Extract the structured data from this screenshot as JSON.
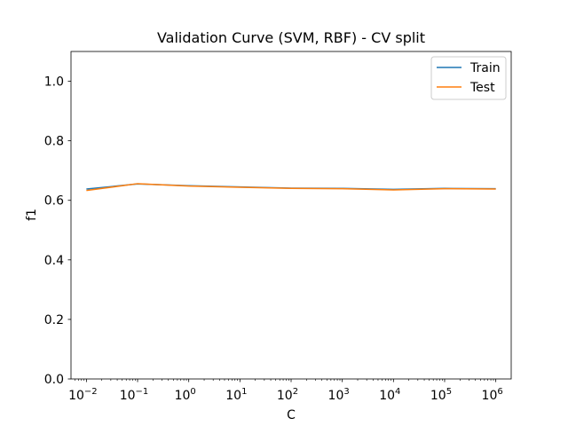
{
  "chart_data": {
    "type": "line",
    "title": "Validation Curve (SVM, RBF) - CV split",
    "xlabel": "C",
    "ylabel": "f1",
    "xscale": "log",
    "xlim": [
      0.005,
      2000000
    ],
    "ylim": [
      0,
      1.1
    ],
    "x": [
      0.01,
      0.1,
      1,
      10,
      100,
      1000,
      10000,
      100000,
      1000000
    ],
    "x_ticks": [
      0.01,
      0.1,
      1,
      10,
      100,
      1000,
      10000,
      100000,
      1000000
    ],
    "x_tick_labels": [
      {
        "base": "10",
        "exp": "−2"
      },
      {
        "base": "10",
        "exp": "−1"
      },
      {
        "base": "10",
        "exp": "0"
      },
      {
        "base": "10",
        "exp": "1"
      },
      {
        "base": "10",
        "exp": "2"
      },
      {
        "base": "10",
        "exp": "3"
      },
      {
        "base": "10",
        "exp": "4"
      },
      {
        "base": "10",
        "exp": "5"
      },
      {
        "base": "10",
        "exp": "6"
      }
    ],
    "y_ticks": [
      0.0,
      0.2,
      0.4,
      0.6,
      0.8,
      1.0
    ],
    "y_tick_labels": [
      "0.0",
      "0.2",
      "0.4",
      "0.6",
      "0.8",
      "1.0"
    ],
    "series": [
      {
        "name": "Train",
        "color": "#1f77b4",
        "values": [
          0.638,
          0.655,
          0.649,
          0.645,
          0.641,
          0.64,
          0.637,
          0.64,
          0.639
        ]
      },
      {
        "name": "Test",
        "color": "#ff7f0e",
        "values": [
          0.633,
          0.656,
          0.648,
          0.644,
          0.64,
          0.639,
          0.635,
          0.639,
          0.638
        ]
      }
    ],
    "legend": "top-right",
    "grid": false
  }
}
